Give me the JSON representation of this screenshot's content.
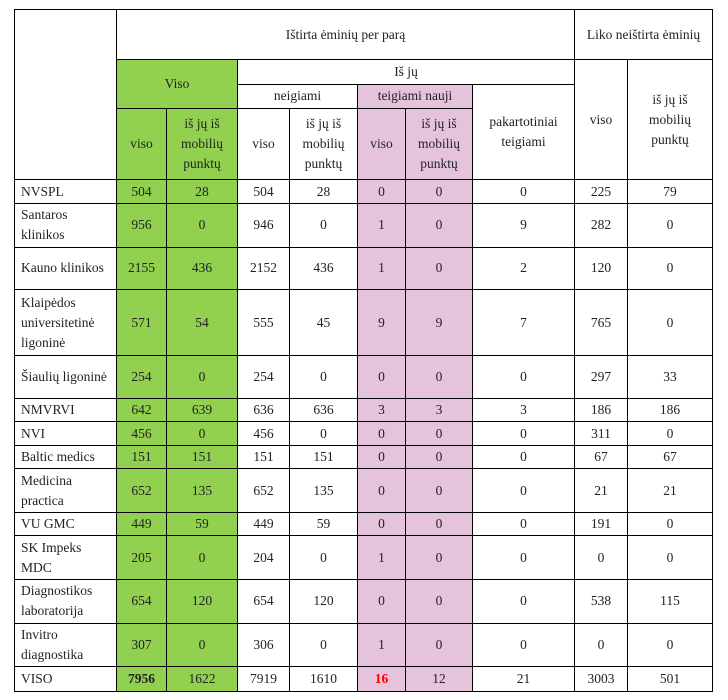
{
  "headers": {
    "tested": "Ištirta ėminių per parą",
    "remaining": "Liko neištirta ėminių",
    "total": "Viso",
    "of_them": "Iš jų",
    "negative": "neigiami",
    "positive_new": "teigiami nauji",
    "repeat_positive": "pakartotiniai teigiami",
    "all": "viso",
    "of_mobile": "iš jų iš mobilių punktų"
  },
  "rows": [
    {
      "name": "NVSPL",
      "v": [
        "504",
        "28",
        "504",
        "28",
        "0",
        "0",
        "0",
        "225",
        "79"
      ]
    },
    {
      "name": "Santaros klinikos",
      "v": [
        "956",
        "0",
        "946",
        "0",
        "1",
        "0",
        "9",
        "282",
        "0"
      ]
    },
    {
      "name": "Kauno klinikos",
      "v": [
        "2155",
        "436",
        "2152",
        "436",
        "1",
        "0",
        "2",
        "120",
        "0"
      ]
    },
    {
      "name": "Klaipėdos universitetinė ligoninė",
      "v": [
        "571",
        "54",
        "555",
        "45",
        "9",
        "9",
        "7",
        "765",
        "0"
      ]
    },
    {
      "name": "Šiaulių ligoninė",
      "v": [
        "254",
        "0",
        "254",
        "0",
        "0",
        "0",
        "0",
        "297",
        "33"
      ]
    },
    {
      "name": "NMVRVI",
      "v": [
        "642",
        "639",
        "636",
        "636",
        "3",
        "3",
        "3",
        "186",
        "186"
      ]
    },
    {
      "name": "NVI",
      "v": [
        "456",
        "0",
        "456",
        "0",
        "0",
        "0",
        "0",
        "311",
        "0"
      ]
    },
    {
      "name": "Baltic medics",
      "v": [
        "151",
        "151",
        "151",
        "151",
        "0",
        "0",
        "0",
        "67",
        "67"
      ]
    },
    {
      "name": "Medicina practica",
      "v": [
        "652",
        "135",
        "652",
        "135",
        "0",
        "0",
        "0",
        "21",
        "21"
      ]
    },
    {
      "name": "VU GMC",
      "v": [
        "449",
        "59",
        "449",
        "59",
        "0",
        "0",
        "0",
        "191",
        "0"
      ]
    },
    {
      "name": "SK Impeks MDC",
      "v": [
        "205",
        "0",
        "204",
        "0",
        "1",
        "0",
        "0",
        "0",
        "0"
      ]
    },
    {
      "name": "Diagnostikos laboratorija",
      "v": [
        "654",
        "120",
        "654",
        "120",
        "0",
        "0",
        "0",
        "538",
        "115"
      ]
    },
    {
      "name": "Invitro diagnostika",
      "v": [
        "307",
        "0",
        "306",
        "0",
        "1",
        "0",
        "0",
        "0",
        "0"
      ]
    }
  ],
  "total_row": {
    "name": "VISO",
    "v": [
      "7956",
      "1622",
      "7919",
      "1610",
      "16",
      "12",
      "21",
      "3003",
      "501"
    ]
  },
  "colors": {
    "total_bg": "#92d050",
    "positive_bg": "#e6c3dd",
    "highlight": "#ff0000"
  }
}
